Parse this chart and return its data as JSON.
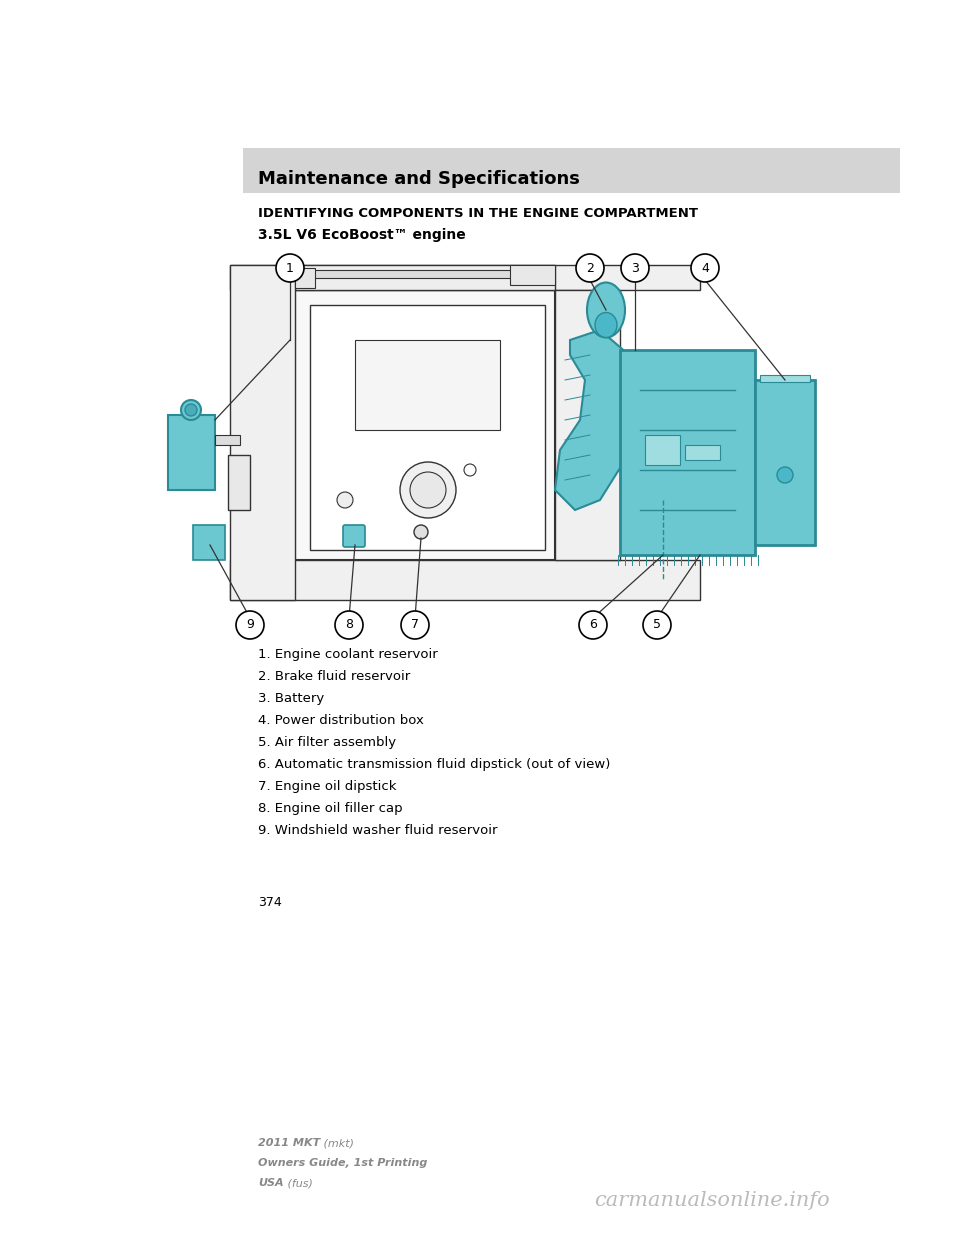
{
  "bg_color": "#ffffff",
  "header_bar_color": "#d4d4d4",
  "header_text": "Maintenance and Specifications",
  "header_text_fontsize": 13,
  "section_title": "IDENTIFYING COMPONENTS IN THE ENGINE COMPARTMENT",
  "section_title_fontsize": 9.5,
  "subsection_title": "3.5L V6 EcoBoost™ engine",
  "subsection_title_fontsize": 10,
  "items": [
    "1. Engine coolant reservoir",
    "2. Brake fluid reservoir",
    "3. Battery",
    "4. Power distribution box",
    "5. Air filter assembly",
    "6. Automatic transmission fluid dipstick (out of view)",
    "7. Engine oil dipstick",
    "8. Engine oil filler cap",
    "9. Windshield washer fluid reservoir"
  ],
  "items_fontsize": 9.5,
  "page_number": "374",
  "footer_line1_bold": "2011 MKT",
  "footer_line1_normal": " (mkt)",
  "footer_line2": "Owners Guide, 1st Printing",
  "footer_line3_bold": "USA",
  "footer_line3_normal": " (fus)",
  "footer_fontsize": 8,
  "watermark_text": "carmanualsonline.info",
  "watermark_color": "#bbbbbb",
  "watermark_fontsize": 15,
  "teal_color": "#6bc8d0",
  "teal_edge": "#2a8a95",
  "line_color": "#333333",
  "circle_bg": "#ffffff"
}
